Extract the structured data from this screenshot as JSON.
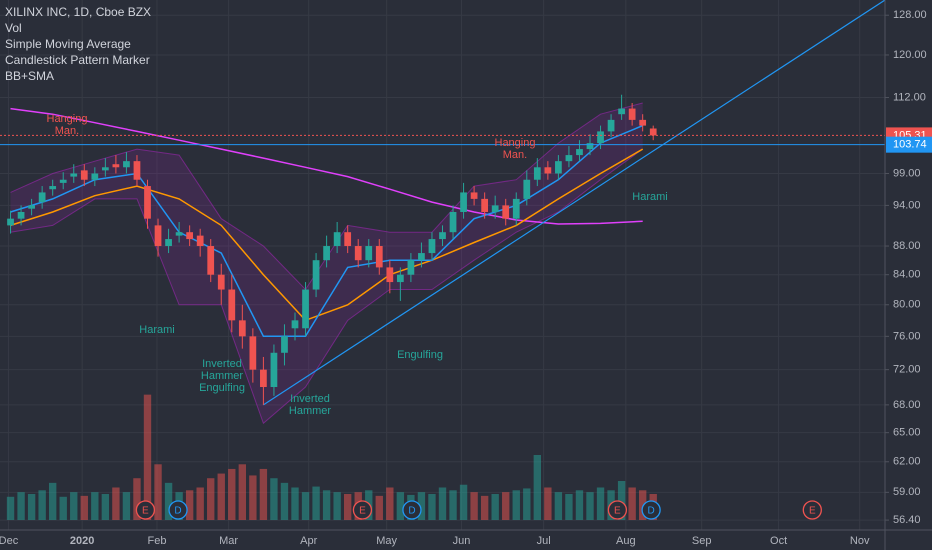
{
  "chart_data": {
    "type": "candlestick",
    "title": "XILINX INC, 1D, Cboe BZX",
    "legend_items": [
      "Vol",
      "Simple Moving Average",
      "Candlestick Pattern Marker",
      "BB+SMA"
    ],
    "log_scale": true,
    "grid": true,
    "up_color": "#26a69a",
    "down_color": "#ef5350",
    "xlim": [
      -1,
      83
    ],
    "xticks": [
      {
        "value": -0.2,
        "label": "Dec"
      },
      {
        "value": 6.8,
        "label": "2020"
      },
      {
        "value": 13.9,
        "label": "Feb"
      },
      {
        "value": 20.7,
        "label": "Mar"
      },
      {
        "value": 28.3,
        "label": "Apr"
      },
      {
        "value": 35.7,
        "label": "May"
      },
      {
        "value": 42.8,
        "label": "Jun"
      },
      {
        "value": 50.6,
        "label": "Jul"
      },
      {
        "value": 58.4,
        "label": "Aug"
      },
      {
        "value": 65.6,
        "label": "Sep"
      },
      {
        "value": 72.9,
        "label": "Oct"
      },
      {
        "value": 80.6,
        "label": "Nov"
      }
    ],
    "ylim": [
      55.5,
      131.2
    ],
    "yticks": [
      {
        "value": 56.4,
        "label": "56.40"
      },
      {
        "value": 59,
        "label": "59.00"
      },
      {
        "value": 62,
        "label": "62.00"
      },
      {
        "value": 65,
        "label": "65.00"
      },
      {
        "value": 68,
        "label": "68.00"
      },
      {
        "value": 72,
        "label": "72.00"
      },
      {
        "value": 76,
        "label": "76.00"
      },
      {
        "value": 80,
        "label": "80.00"
      },
      {
        "value": 84,
        "label": "84.00"
      },
      {
        "value": 88,
        "label": "88.00"
      },
      {
        "value": 94,
        "label": "94.00"
      },
      {
        "value": 99,
        "label": "99.00"
      },
      {
        "value": 112,
        "label": "112.00"
      },
      {
        "value": 120,
        "label": "120.00"
      },
      {
        "value": 128,
        "label": "128.00"
      }
    ],
    "open": [
      91,
      92,
      93.5,
      94.5,
      96.5,
      97.5,
      98.5,
      99.5,
      98,
      99.5,
      100.5,
      100,
      101,
      97,
      91,
      88,
      89.5,
      90,
      89.5,
      88,
      84,
      82,
      78,
      76,
      72,
      70,
      74,
      77,
      77,
      82,
      86,
      88,
      90,
      88,
      86,
      88,
      85,
      83,
      84,
      86,
      87,
      89,
      90,
      93,
      96,
      95,
      93,
      94,
      92,
      95,
      98,
      100,
      99,
      101,
      102,
      103,
      104,
      106,
      109,
      110,
      108,
      106.5
    ],
    "high": [
      93.2,
      94,
      95,
      97,
      98,
      99.2,
      100.5,
      100.5,
      100,
      101.5,
      102,
      102.5,
      102,
      98,
      92,
      90.5,
      91.5,
      91,
      90.5,
      89,
      85.5,
      84,
      80,
      77,
      73.5,
      75,
      77.5,
      79,
      83,
      87,
      89.5,
      91.5,
      91,
      89,
      89,
      89,
      86,
      85,
      87,
      88.5,
      90,
      91,
      94,
      97.5,
      97,
      96,
      95.5,
      95,
      96,
      99.5,
      101.5,
      101,
      102,
      103.5,
      104.5,
      105.5,
      107,
      109,
      112.5,
      111,
      109,
      107
    ],
    "low": [
      89.8,
      91,
      92.5,
      93.5,
      95.5,
      96.5,
      97.5,
      97,
      97,
      98.5,
      99,
      99,
      97,
      90.5,
      86.5,
      87,
      88.5,
      88,
      86.5,
      83,
      80,
      76.5,
      74.5,
      70.5,
      68,
      69,
      72.5,
      75.5,
      76,
      81,
      85,
      87,
      87,
      85,
      85,
      84,
      81.5,
      80.5,
      83,
      85,
      86,
      88,
      89,
      92,
      94,
      92,
      92,
      91,
      91,
      94,
      97,
      98,
      98,
      100,
      101,
      102,
      103,
      105,
      108,
      107,
      106,
      104.5
    ],
    "close": [
      92,
      93,
      94,
      96,
      97,
      98,
      99,
      98,
      99,
      100,
      100,
      101,
      98,
      92,
      88,
      89,
      90,
      89,
      88,
      84,
      82,
      78,
      76,
      72,
      70,
      74,
      76,
      78,
      82,
      86,
      88,
      90,
      88,
      86,
      88,
      85,
      83,
      84,
      86,
      87,
      89,
      90,
      93,
      96,
      95,
      93,
      94,
      92,
      95,
      98,
      100,
      99,
      101,
      102,
      103,
      104,
      106,
      108,
      110,
      108,
      107,
      105.31
    ],
    "volume": [
      2.5,
      3,
      2.8,
      3.2,
      4,
      2.5,
      3,
      2.6,
      3,
      2.8,
      3.5,
      3,
      4.5,
      13.5,
      6,
      4,
      3,
      3.2,
      3.5,
      4.5,
      5,
      5.5,
      6,
      4.8,
      5.5,
      4.5,
      4,
      3.5,
      3,
      3.6,
      3.2,
      3,
      2.8,
      3,
      3.2,
      2.6,
      3.5,
      3,
      2.7,
      3,
      2.8,
      3.5,
      3.2,
      3.8,
      3,
      2.6,
      2.8,
      3,
      3.2,
      3.4,
      7,
      3.5,
      3,
      2.8,
      3.2,
      3,
      3.5,
      3.2,
      4.2,
      3.5,
      3.2,
      2.8
    ],
    "vlim": [
      0,
      14
    ],
    "overlays": {
      "x": [
        0,
        4,
        8,
        12,
        16,
        20,
        24,
        28,
        32,
        36,
        40,
        44,
        48,
        52,
        56,
        60
      ],
      "bands": {
        "color": "#9c27b0",
        "upper": [
          96,
          99,
          101,
          103,
          102,
          92,
          88,
          82,
          91,
          90,
          90,
          97,
          98,
          104,
          109,
          111
        ],
        "lower": [
          90,
          91,
          95,
          95,
          80,
          80,
          66,
          70,
          78,
          82,
          82,
          86,
          90,
          93,
          98,
          103
        ]
      },
      "series": [
        {
          "color": "#e040fb",
          "values": [
            110,
            109,
            107.5,
            106,
            104.5,
            103,
            101.5,
            100,
            98.5,
            96.5,
            94.5,
            93,
            91.8,
            91.2,
            91.3,
            91.6
          ]
        },
        {
          "color": "#ff9800",
          "values": [
            91,
            93,
            95.5,
            97,
            95,
            91,
            84,
            78,
            80,
            84,
            86,
            88.5,
            91,
            95,
            99,
            103
          ]
        },
        {
          "color": "#2196f3",
          "values": [
            93,
            95,
            98,
            99,
            90,
            87,
            76,
            76,
            85,
            86,
            86,
            92,
            94,
            98,
            104,
            107
          ]
        }
      ]
    },
    "trendline": {
      "color": "#2196f3",
      "x": [
        24,
        83
      ],
      "y": [
        68,
        131.2
      ]
    },
    "price_lines": [
      {
        "value": 105.31,
        "color": "#ef5350",
        "style": "dotted"
      },
      {
        "value": 103.74,
        "color": "#2196f3",
        "style": "solid"
      }
    ],
    "annotations": [
      {
        "lines": [
          "Hanging",
          "Man."
        ],
        "color": "#ef5350"
      },
      {
        "lines": [
          "Harami"
        ],
        "color": "#26a69a"
      },
      {
        "lines": [
          "Inverted",
          "Hammer",
          "Engulfing"
        ],
        "color": "#26a69a"
      },
      {
        "lines": [
          "Inverted",
          "Hammer"
        ],
        "color": "#26a69a"
      },
      {
        "lines": [
          "Engulfing"
        ],
        "color": "#26a69a"
      },
      {
        "lines": [
          "Hanging",
          "Man."
        ],
        "color": "#ef5350"
      },
      {
        "lines": [
          "Harami"
        ],
        "color": "#26a69a"
      }
    ],
    "events": [
      {
        "label": "E",
        "x": 12.8,
        "color": "#ef5350"
      },
      {
        "label": "D",
        "x": 15.9,
        "color": "#2196f3"
      },
      {
        "label": "E",
        "x": 33.4,
        "color": "#ef5350"
      },
      {
        "label": "D",
        "x": 38.1,
        "color": "#2196f3"
      },
      {
        "label": "E",
        "x": 57.6,
        "color": "#ef5350"
      },
      {
        "label": "D",
        "x": 60.8,
        "color": "#2196f3"
      },
      {
        "label": "E",
        "x": 76.1,
        "color": "#ef5350"
      }
    ]
  }
}
